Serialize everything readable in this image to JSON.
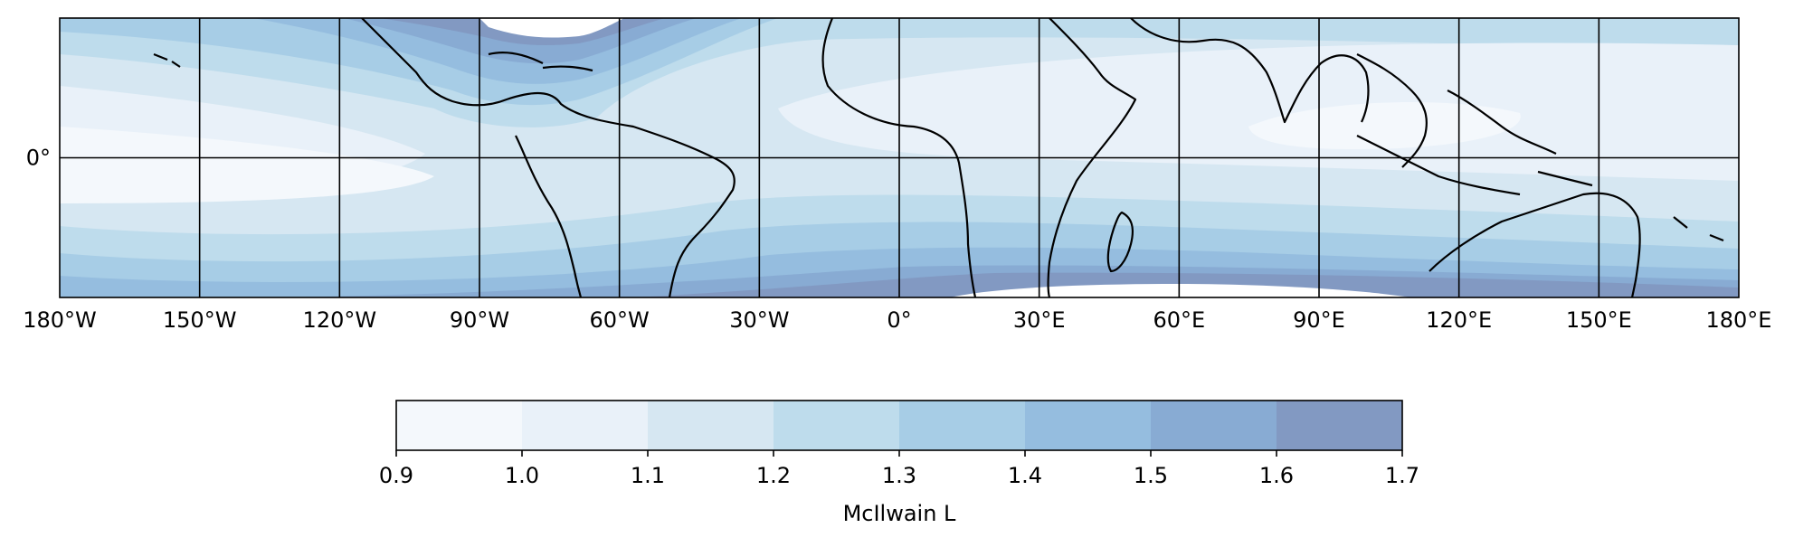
{
  "map": {
    "projection": "PlateCarree",
    "lon_range": [
      -180,
      180
    ],
    "lat_range": [
      -30,
      30
    ],
    "gridlines": true,
    "x_ticks": [
      {
        "value": -180,
        "label": "180°W"
      },
      {
        "value": -150,
        "label": "150°W"
      },
      {
        "value": -120,
        "label": "120°W"
      },
      {
        "value": -90,
        "label": "90°W"
      },
      {
        "value": -60,
        "label": "60°W"
      },
      {
        "value": -30,
        "label": "30°W"
      },
      {
        "value": 0,
        "label": "0°"
      },
      {
        "value": 30,
        "label": "30°E"
      },
      {
        "value": 60,
        "label": "60°E"
      },
      {
        "value": 90,
        "label": "90°E"
      },
      {
        "value": 120,
        "label": "120°E"
      },
      {
        "value": 150,
        "label": "150°E"
      },
      {
        "value": 180,
        "label": "180°E"
      }
    ],
    "y_ticks": [
      {
        "value": 0,
        "label": "0°"
      }
    ],
    "field": "McIlwain L",
    "colormap": [
      "#f4f8fc",
      "#e9f1f9",
      "#d6e7f2",
      "#bedcec",
      "#a7cde6",
      "#95bddf",
      "#88abd3",
      "#8299c2"
    ]
  },
  "colorbar": {
    "label": "McIlwain L",
    "levels": [
      0.9,
      1.0,
      1.1,
      1.2,
      1.3,
      1.4,
      1.5,
      1.6,
      1.7
    ],
    "tick_labels": [
      "0.9",
      "1.0",
      "1.1",
      "1.2",
      "1.3",
      "1.4",
      "1.5",
      "1.6",
      "1.7"
    ],
    "colors": [
      "#f4f8fc",
      "#e9f1f9",
      "#d6e7f2",
      "#bedcec",
      "#a7cde6",
      "#95bddf",
      "#88abd3",
      "#8299c2"
    ],
    "orientation": "horizontal",
    "placement": "bottom"
  }
}
